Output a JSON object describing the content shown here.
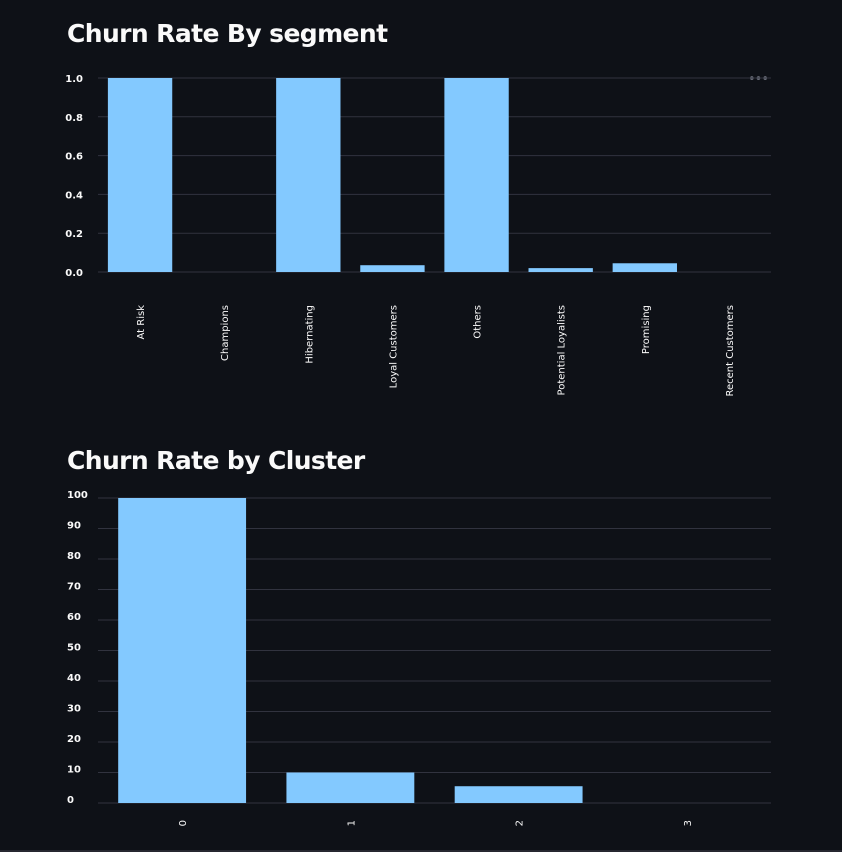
{
  "page": {
    "menu_glyph": "•••"
  },
  "chart_data": [
    {
      "type": "bar",
      "title": "Churn Rate By segment",
      "xlabel": "",
      "ylabel": "",
      "categories": [
        "At Risk",
        "Champions",
        "Hibernating",
        "Loyal Customers",
        "Others",
        "Potential Loyalists",
        "Promising",
        "Recent Customers"
      ],
      "values": [
        1.0,
        0.0,
        1.0,
        0.035,
        1.0,
        0.02,
        0.045,
        0.0
      ],
      "ylim": [
        0,
        1.0
      ],
      "yticks": [
        "0.0",
        "0.2",
        "0.4",
        "0.6",
        "0.8",
        "1.0"
      ],
      "grid": true,
      "legend": "none",
      "bar_color": "#83c9ff"
    },
    {
      "type": "bar",
      "title": "Churn Rate by Cluster",
      "xlabel": "",
      "ylabel": "",
      "categories": [
        "0",
        "1",
        "2",
        "3"
      ],
      "values": [
        100,
        10,
        5.5,
        0
      ],
      "ylim": [
        0,
        100
      ],
      "yticks": [
        "0",
        "10",
        "20",
        "30",
        "40",
        "50",
        "60",
        "70",
        "80",
        "90",
        "100"
      ],
      "grid": true,
      "legend": "none",
      "bar_color": "#83c9ff"
    }
  ]
}
